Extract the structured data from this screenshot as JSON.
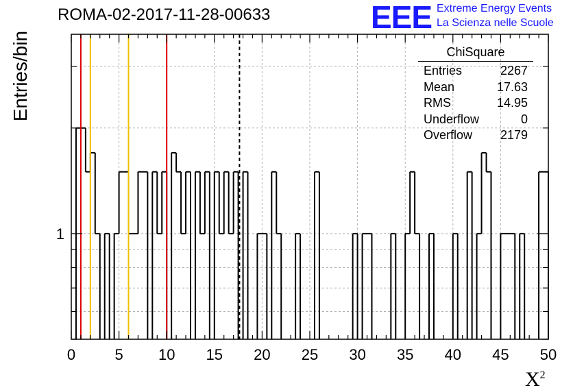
{
  "run_title": "ROMA-02-2017-11-28-00633",
  "logo": {
    "mark": "EEE",
    "line1": "Extreme Energy Events",
    "line2": "La Scienza nelle Scuole",
    "color": "#1a1aff"
  },
  "stats_box": {
    "title": "ChiSquare",
    "rows": [
      {
        "label": "Entries",
        "value": "2267"
      },
      {
        "label": "Mean",
        "value": "17.63"
      },
      {
        "label": "RMS",
        "value": "14.95"
      },
      {
        "label": "Underflow",
        "value": "0"
      },
      {
        "label": "Overflow",
        "value": "2179"
      }
    ]
  },
  "chart_data": {
    "type": "bar",
    "style": "step-histogram",
    "title": "",
    "xlabel": "X",
    "xlabel_superscript": "2",
    "ylabel": "Entries/bin",
    "xlim": [
      0,
      50
    ],
    "ylim": [
      0.5,
      3.7
    ],
    "y_scale": "log",
    "grid": true,
    "x_ticks": [
      "0",
      "5",
      "10",
      "15",
      "20",
      "25",
      "30",
      "35",
      "40",
      "45",
      "50"
    ],
    "y_ticks": [
      "1"
    ],
    "bin_width": 0.5,
    "bins": [
      {
        "x": 0.5,
        "y": 2
      },
      {
        "x": 1.0,
        "y": 2
      },
      {
        "x": 1.5,
        "y": 1.5
      },
      {
        "x": 2.0,
        "y": 1.7
      },
      {
        "x": 2.5,
        "y": 1
      },
      {
        "x": 3.0,
        "y": 0
      },
      {
        "x": 3.5,
        "y": 1
      },
      {
        "x": 4.0,
        "y": 0
      },
      {
        "x": 4.5,
        "y": 1
      },
      {
        "x": 5.0,
        "y": 1.5
      },
      {
        "x": 5.5,
        "y": 1.5
      },
      {
        "x": 6.0,
        "y": 1
      },
      {
        "x": 6.5,
        "y": 1
      },
      {
        "x": 7.0,
        "y": 1.5
      },
      {
        "x": 7.5,
        "y": 1.5
      },
      {
        "x": 8.0,
        "y": 0
      },
      {
        "x": 8.5,
        "y": 1.5
      },
      {
        "x": 9.0,
        "y": 1
      },
      {
        "x": 9.5,
        "y": 1.5
      },
      {
        "x": 10.0,
        "y": 0
      },
      {
        "x": 10.5,
        "y": 1.7
      },
      {
        "x": 11.0,
        "y": 1.5
      },
      {
        "x": 11.5,
        "y": 1
      },
      {
        "x": 12.0,
        "y": 1.5
      },
      {
        "x": 12.5,
        "y": 0
      },
      {
        "x": 13.0,
        "y": 1.5
      },
      {
        "x": 13.5,
        "y": 1
      },
      {
        "x": 14.0,
        "y": 1.5
      },
      {
        "x": 14.5,
        "y": 0
      },
      {
        "x": 15.0,
        "y": 1.5
      },
      {
        "x": 15.5,
        "y": 1
      },
      {
        "x": 16.0,
        "y": 1.5
      },
      {
        "x": 16.5,
        "y": 1
      },
      {
        "x": 17.0,
        "y": 1.5
      },
      {
        "x": 17.5,
        "y": 0
      },
      {
        "x": 18.0,
        "y": 1.5
      },
      {
        "x": 18.5,
        "y": 0
      },
      {
        "x": 19.0,
        "y": 0
      },
      {
        "x": 19.5,
        "y": 1
      },
      {
        "x": 20.0,
        "y": 1
      },
      {
        "x": 20.5,
        "y": 0
      },
      {
        "x": 21.0,
        "y": 1.5
      },
      {
        "x": 21.5,
        "y": 1
      },
      {
        "x": 22.0,
        "y": 0
      },
      {
        "x": 22.5,
        "y": 0
      },
      {
        "x": 23.0,
        "y": 0
      },
      {
        "x": 23.5,
        "y": 1
      },
      {
        "x": 24.0,
        "y": 0
      },
      {
        "x": 24.5,
        "y": 0
      },
      {
        "x": 25.0,
        "y": 0
      },
      {
        "x": 25.5,
        "y": 1.5
      },
      {
        "x": 26.0,
        "y": 0
      },
      {
        "x": 29.0,
        "y": 0
      },
      {
        "x": 29.5,
        "y": 1
      },
      {
        "x": 30.0,
        "y": 0
      },
      {
        "x": 30.5,
        "y": 1
      },
      {
        "x": 31.0,
        "y": 1
      },
      {
        "x": 33.0,
        "y": 0
      },
      {
        "x": 33.5,
        "y": 1
      },
      {
        "x": 34.0,
        "y": 0
      },
      {
        "x": 34.5,
        "y": 0
      },
      {
        "x": 35.0,
        "y": 1
      },
      {
        "x": 35.5,
        "y": 1.5
      },
      {
        "x": 36.0,
        "y": 1
      },
      {
        "x": 37.0,
        "y": 0
      },
      {
        "x": 37.5,
        "y": 1
      },
      {
        "x": 38.0,
        "y": 0
      },
      {
        "x": 39.5,
        "y": 0
      },
      {
        "x": 40.0,
        "y": 1
      },
      {
        "x": 40.5,
        "y": 0
      },
      {
        "x": 41.0,
        "y": 0
      },
      {
        "x": 41.5,
        "y": 1.5
      },
      {
        "x": 42.0,
        "y": 0
      },
      {
        "x": 42.5,
        "y": 1
      },
      {
        "x": 43.0,
        "y": 1.7
      },
      {
        "x": 43.5,
        "y": 1.5
      },
      {
        "x": 44.0,
        "y": 0
      },
      {
        "x": 44.5,
        "y": 0
      },
      {
        "x": 45.0,
        "y": 1
      },
      {
        "x": 45.5,
        "y": 1
      },
      {
        "x": 46.0,
        "y": 1
      },
      {
        "x": 46.5,
        "y": 0
      },
      {
        "x": 47.0,
        "y": 1
      },
      {
        "x": 47.5,
        "y": 0
      },
      {
        "x": 48.0,
        "y": 0
      },
      {
        "x": 48.5,
        "y": 0
      },
      {
        "x": 49.0,
        "y": 1.5
      },
      {
        "x": 49.5,
        "y": 1.5
      }
    ],
    "reference_lines": [
      {
        "x": 1.0,
        "color": "#dd0000",
        "style": "solid"
      },
      {
        "x": 2.0,
        "color": "#f0c000",
        "style": "solid"
      },
      {
        "x": 6.0,
        "color": "#f0c000",
        "style": "solid"
      },
      {
        "x": 10.0,
        "color": "#dd0000",
        "style": "solid"
      },
      {
        "x": 17.63,
        "color": "#000000",
        "style": "dashed"
      }
    ]
  }
}
